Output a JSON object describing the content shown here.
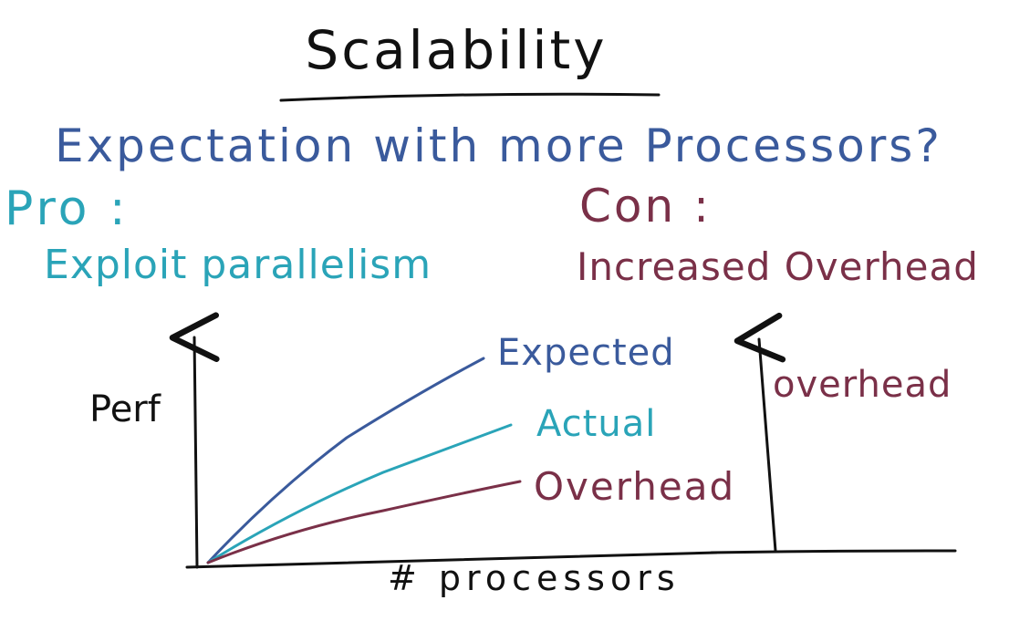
{
  "title": "Scalability",
  "question": "Expectation with more Processors?",
  "pro": {
    "heading": "Pro :",
    "text": "Exploit parallelism"
  },
  "con": {
    "heading": "Con :",
    "text": "Increased Overhead"
  },
  "graph": {
    "y_label": "Perf",
    "x_label": "# processors",
    "curves": [
      {
        "name": "Expected"
      },
      {
        "name": "Actual"
      },
      {
        "name": "Overhead"
      }
    ],
    "second_axis_label": "overhead"
  },
  "colors": {
    "ink": "#111111",
    "blue": "#3a5a9c",
    "teal": "#2aa4b8",
    "maroon": "#7a3048"
  }
}
